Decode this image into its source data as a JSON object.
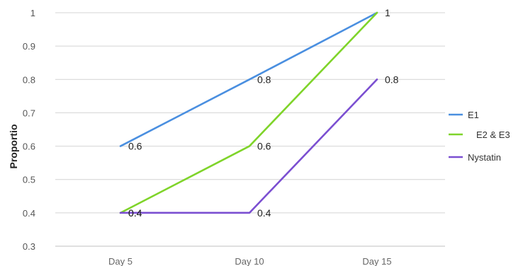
{
  "chart_data": {
    "type": "line",
    "categories": [
      "Day 5",
      "Day 10",
      "Day 15"
    ],
    "ylabel": "Proportio",
    "ylim": [
      0.3,
      1
    ],
    "yticks": [
      0.3,
      0.4,
      0.5,
      0.6,
      0.7,
      0.8,
      0.9,
      1
    ],
    "ytick_labels": [
      "0.3",
      "0.4",
      "0.5",
      "0.6",
      "0.7",
      "0.8",
      "0.9",
      "1"
    ],
    "grid": true,
    "legend_position": "right",
    "series": [
      {
        "name": "E1",
        "values": [
          0.6,
          0.8,
          1
        ],
        "labels": [
          "0.6",
          "0.8",
          "1"
        ],
        "color": "#4a8fe0"
      },
      {
        "name": "E2 & E3",
        "values": [
          0.4,
          0.6,
          1
        ],
        "labels": [
          "0.4",
          "0.6",
          ""
        ],
        "color": "#7fd42a"
      },
      {
        "name": "Nystatin",
        "values": [
          0.4,
          0.4,
          0.8
        ],
        "labels": [
          "0.4",
          "0.4",
          "0.8"
        ],
        "color": "#7b4fd1"
      }
    ]
  }
}
